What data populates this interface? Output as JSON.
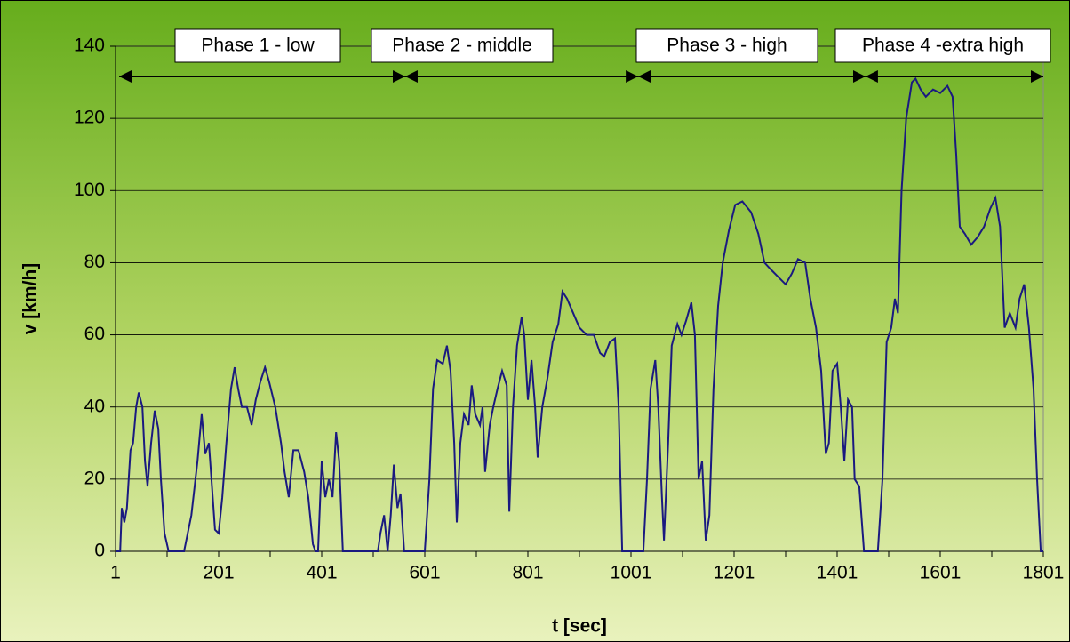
{
  "chart_data": {
    "type": "line",
    "xlabel": "t [sec]",
    "ylabel": "v [km/h]",
    "xlim": [
      1,
      1801
    ],
    "xticks": [
      1,
      201,
      401,
      601,
      801,
      1001,
      1201,
      1401,
      1601,
      1801
    ],
    "ylim": [
      0,
      140
    ],
    "yticks": [
      0,
      20,
      40,
      60,
      80,
      100,
      120,
      140
    ],
    "grid": true,
    "phases": [
      {
        "name": "Phase 1 - low",
        "start": 8,
        "end": 563
      },
      {
        "name": "Phase 2 - middle",
        "start": 563,
        "end": 1015
      },
      {
        "name": "Phase 3 - high",
        "start": 1015,
        "end": 1456
      },
      {
        "name": "Phase 4 -extra high",
        "start": 1456,
        "end": 1801
      }
    ],
    "series": [
      {
        "color": "#1a1a80",
        "x": [
          1,
          10,
          13,
          18,
          23,
          30,
          35,
          41,
          46,
          53,
          58,
          63,
          70,
          77,
          84,
          89,
          96,
          104,
          134,
          148,
          160,
          168,
          175,
          182,
          187,
          194,
          201,
          208,
          216,
          225,
          232,
          239,
          246,
          256,
          265,
          273,
          282,
          291,
          299,
          311,
          322,
          329,
          337,
          346,
          356,
          367,
          375,
          384,
          389,
          394,
          401,
          408,
          415,
          422,
          429,
          435,
          442,
          510,
          515,
          522,
          529,
          535,
          541,
          548,
          554,
          561,
          601,
          610,
          617,
          625,
          636,
          644,
          651,
          658,
          663,
          670,
          677,
          686,
          692,
          699,
          708,
          713,
          718,
          727,
          734,
          742,
          751,
          760,
          765,
          772,
          780,
          789,
          794,
          801,
          808,
          815,
          820,
          829,
          839,
          849,
          860,
          868,
          877,
          889,
          901,
          915,
          929,
          941,
          949,
          960,
          970,
          977,
          984,
          1025,
          1032,
          1039,
          1048,
          1054,
          1061,
          1065,
          1073,
          1080,
          1091,
          1099,
          1108,
          1118,
          1125,
          1132,
          1139,
          1146,
          1153,
          1161,
          1170,
          1179,
          1191,
          1203,
          1217,
          1234,
          1248,
          1260,
          1273,
          1287,
          1301,
          1313,
          1325,
          1339,
          1349,
          1360,
          1370,
          1379,
          1385,
          1392,
          1401,
          1408,
          1415,
          1422,
          1430,
          1435,
          1444,
          1453,
          1480,
          1489,
          1497,
          1506,
          1513,
          1519,
          1526,
          1535,
          1546,
          1553,
          1563,
          1573,
          1587,
          1601,
          1615,
          1625,
          1632,
          1639,
          1649,
          1661,
          1673,
          1686,
          1698,
          1708,
          1717,
          1726,
          1736,
          1747,
          1755,
          1764,
          1773,
          1782,
          1789,
          1796,
          1801
        ],
        "values": [
          0,
          0,
          12,
          8,
          12,
          28,
          30,
          40,
          44,
          40,
          25,
          18,
          30,
          39,
          34,
          20,
          5,
          0,
          0,
          10,
          25,
          38,
          27,
          30,
          20,
          6,
          5,
          15,
          30,
          45,
          51,
          45,
          40,
          40,
          35,
          42,
          47,
          51,
          47,
          40,
          30,
          22,
          15,
          28,
          28,
          22,
          15,
          2,
          0,
          0,
          25,
          15,
          20,
          15,
          33,
          25,
          0,
          0,
          5,
          10,
          0,
          10,
          24,
          12,
          16,
          0,
          0,
          20,
          45,
          53,
          52,
          57,
          50,
          30,
          8,
          30,
          38,
          35,
          46,
          38,
          35,
          40,
          22,
          35,
          40,
          45,
          50,
          46,
          11,
          40,
          57,
          65,
          60,
          42,
          53,
          40,
          26,
          40,
          48,
          58,
          63,
          72,
          70,
          66,
          62,
          60,
          60,
          55,
          54,
          58,
          59,
          40,
          0,
          0,
          20,
          45,
          53,
          40,
          15,
          3,
          30,
          57,
          63,
          60,
          64,
          69,
          60,
          20,
          25,
          3,
          10,
          45,
          68,
          80,
          89,
          96,
          97,
          94,
          88,
          80,
          78,
          76,
          74,
          77,
          81,
          80,
          70,
          62,
          50,
          27,
          30,
          50,
          52,
          40,
          25,
          42,
          40,
          20,
          18,
          0,
          0,
          20,
          58,
          62,
          70,
          66,
          100,
          120,
          130,
          131,
          128,
          126,
          128,
          127,
          129,
          126,
          110,
          90,
          88,
          85,
          87,
          90,
          95,
          98,
          90,
          62,
          66,
          62,
          70,
          74,
          62,
          45,
          20,
          0,
          0
        ]
      }
    ]
  }
}
